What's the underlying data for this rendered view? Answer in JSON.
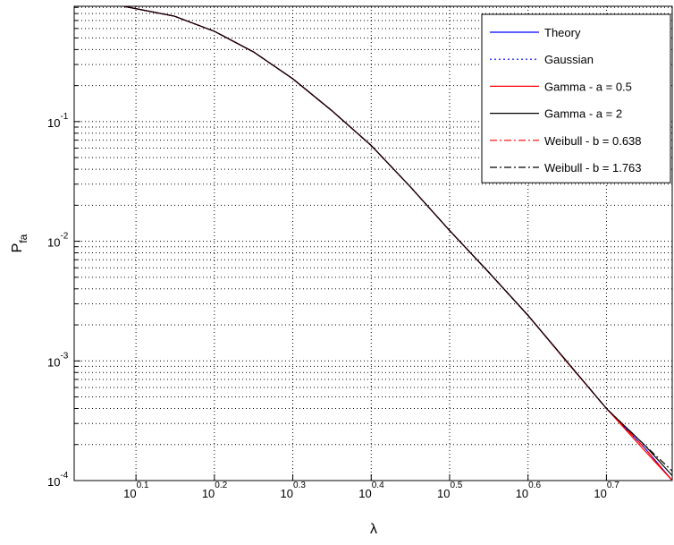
{
  "chart_data": {
    "type": "line",
    "xlabel": "λ",
    "ylabel": "P",
    "ylabel_sub": "fa",
    "xscale": "log",
    "yscale": "log",
    "grid": true,
    "legend": "upper right",
    "xlim": [
      1.05,
      6.08
    ],
    "ylim": [
      0.0001,
      0.92
    ],
    "xticks": [
      {
        "value": 1.2589,
        "label": "10",
        "exponent": "0.1"
      },
      {
        "value": 1.5849,
        "label": "10",
        "exponent": "0.2"
      },
      {
        "value": 1.9953,
        "label": "10",
        "exponent": "0.3"
      },
      {
        "value": 2.5119,
        "label": "10",
        "exponent": "0.4"
      },
      {
        "value": 3.1623,
        "label": "10",
        "exponent": "0.5"
      },
      {
        "value": 3.9811,
        "label": "10",
        "exponent": "0.6"
      },
      {
        "value": 5.0119,
        "label": "10",
        "exponent": "0.7"
      }
    ],
    "yticks": [
      {
        "value": 0.0001,
        "label": "10",
        "exponent": "-4"
      },
      {
        "value": 0.001,
        "label": "10",
        "exponent": "-3"
      },
      {
        "value": 0.01,
        "label": "10",
        "exponent": "-2"
      },
      {
        "value": 0.1,
        "label": "10",
        "exponent": "-1"
      }
    ],
    "yminorticks": [
      0.0002,
      0.0003,
      0.0004,
      0.0005,
      0.0006,
      0.0007,
      0.0008,
      0.0009,
      0.002,
      0.003,
      0.004,
      0.005,
      0.006,
      0.007,
      0.008,
      0.009,
      0.02,
      0.03,
      0.04,
      0.05,
      0.06,
      0.07,
      0.08,
      0.09,
      0.2,
      0.3,
      0.4,
      0.5,
      0.6,
      0.7,
      0.8,
      0.9
    ],
    "x": [
      1.216,
      1.409,
      1.585,
      1.778,
      1.995,
      2.239,
      2.512,
      2.818,
      3.162,
      3.548,
      3.981,
      4.467,
      5.012,
      5.598,
      6.081
    ],
    "series": [
      {
        "name": "Theory",
        "color": "#0000ff",
        "dash": "solid",
        "values": [
          0.918,
          0.76,
          0.568,
          0.382,
          0.228,
          0.123,
          0.0631,
          0.0285,
          0.0123,
          0.0055,
          0.0024,
          0.00098,
          0.0004,
          0.00019,
          0.0001
        ]
      },
      {
        "name": "Gaussian",
        "color": "#0000ff",
        "dash": "dotted",
        "values": [
          0.918,
          0.76,
          0.568,
          0.382,
          0.228,
          0.123,
          0.0631,
          0.0285,
          0.0123,
          0.0055,
          0.0024,
          0.00098,
          0.0004,
          0.00019,
          0.0001
        ]
      },
      {
        "name": "Gamma - a = 0.5",
        "color": "#ff0000",
        "dash": "solid",
        "values": [
          0.918,
          0.76,
          0.568,
          0.382,
          0.228,
          0.123,
          0.0631,
          0.0285,
          0.0123,
          0.0055,
          0.0024,
          0.00097,
          0.0004,
          0.00018,
          0.0001
        ]
      },
      {
        "name": "Gamma - a = 2",
        "color": "#000000",
        "dash": "solid",
        "values": [
          0.918,
          0.76,
          0.568,
          0.382,
          0.228,
          0.123,
          0.0631,
          0.0285,
          0.0123,
          0.0055,
          0.0024,
          0.00098,
          0.0004,
          0.0002,
          0.00011
        ]
      },
      {
        "name": "Weibull - b = 0.638",
        "color": "#ff0000",
        "dash": "dashdot",
        "values": [
          0.918,
          0.76,
          0.568,
          0.382,
          0.228,
          0.123,
          0.0631,
          0.0285,
          0.0123,
          0.0055,
          0.0024,
          0.00098,
          0.0004,
          0.00019,
          0.0001
        ]
      },
      {
        "name": "Weibull - b = 1.763",
        "color": "#000000",
        "dash": "dashdot",
        "values": [
          0.918,
          0.76,
          0.568,
          0.382,
          0.228,
          0.123,
          0.0631,
          0.0285,
          0.0123,
          0.0055,
          0.0024,
          0.00098,
          0.0004,
          0.0002,
          0.00012
        ]
      }
    ]
  }
}
